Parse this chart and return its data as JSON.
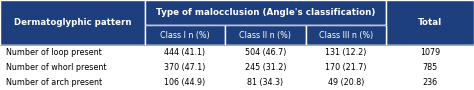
{
  "header_bg": "#1e3f7e",
  "header_text_color": "#ffffff",
  "row_bg": "#f0f0f0",
  "row_bg2": "#ffffff",
  "border_color": "#ffffff",
  "grid_color": "#c0c0c0",
  "col_header": "Dermatoglyphic pattern",
  "span_header": "Type of malocclusion (Angle's classification)",
  "sub_headers": [
    "Class I n (%)",
    "Class II n (%)",
    "Class III n (%)"
  ],
  "total_header": "Total",
  "rows": [
    [
      "Number of loop present",
      "444 (41.1)",
      "504 (46.7)",
      "131 (12.2)",
      "1079"
    ],
    [
      "Number of whorl present",
      "370 (47.1)",
      "245 (31.2)",
      "170 (21.7)",
      "785"
    ],
    [
      "Number of arch present",
      "106 (44.9)",
      "81 (34.3)",
      "49 (20.8)",
      "236"
    ]
  ],
  "figsize": [
    4.74,
    0.9
  ],
  "dpi": 100
}
